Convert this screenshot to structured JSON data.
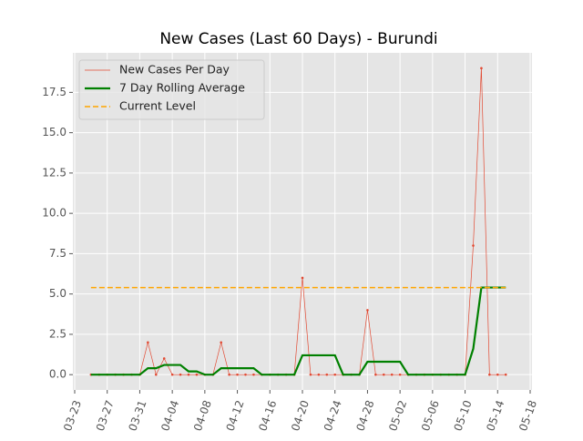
{
  "chart_data": {
    "type": "line",
    "title": "New Cases (Last 60 Days) - Burundi",
    "x": [
      "03-25",
      "03-26",
      "03-27",
      "03-28",
      "03-29",
      "03-30",
      "03-31",
      "04-01",
      "04-02",
      "04-03",
      "04-04",
      "04-05",
      "04-06",
      "04-07",
      "04-08",
      "04-09",
      "04-10",
      "04-11",
      "04-12",
      "04-13",
      "04-14",
      "04-15",
      "04-16",
      "04-17",
      "04-18",
      "04-19",
      "04-20",
      "04-21",
      "04-22",
      "04-23",
      "04-24",
      "04-25",
      "04-26",
      "04-27",
      "04-28",
      "04-29",
      "04-30",
      "05-01",
      "05-02",
      "05-03",
      "05-04",
      "05-05",
      "05-06",
      "05-07",
      "05-08",
      "05-09",
      "05-10",
      "05-11",
      "05-12",
      "05-13",
      "05-14",
      "05-15"
    ],
    "series": [
      {
        "name": "New Cases Per Day",
        "color": "#e24a33",
        "values": [
          0,
          0,
          0,
          0,
          0,
          0,
          0,
          2,
          0,
          1,
          0,
          0,
          0,
          0,
          0,
          0,
          2,
          0,
          0,
          0,
          0,
          0,
          0,
          0,
          0,
          0,
          6,
          0,
          0,
          0,
          0,
          0,
          0,
          0,
          4,
          0,
          0,
          0,
          0,
          0,
          0,
          0,
          0,
          0,
          0,
          0,
          0,
          8,
          19,
          0,
          0,
          0
        ]
      },
      {
        "name": "7 Day Rolling Average",
        "color": "#008000",
        "values": [
          0,
          0,
          0,
          0,
          0,
          0,
          0,
          0.4,
          0.4,
          0.6,
          0.6,
          0.6,
          0.2,
          0.2,
          0,
          0,
          0.4,
          0.4,
          0.4,
          0.4,
          0.4,
          0,
          0,
          0,
          0,
          0,
          1.2,
          1.2,
          1.2,
          1.2,
          1.2,
          0,
          0,
          0,
          0.8,
          0.8,
          0.8,
          0.8,
          0.8,
          0,
          0,
          0,
          0,
          0,
          0,
          0,
          0,
          1.6,
          5.4,
          5.4,
          5.4,
          5.4
        ]
      },
      {
        "name": "Current Level",
        "color": "#ffa500",
        "values": [
          5.4,
          5.4,
          5.4,
          5.4,
          5.4,
          5.4,
          5.4,
          5.4,
          5.4,
          5.4,
          5.4,
          5.4,
          5.4,
          5.4,
          5.4,
          5.4,
          5.4,
          5.4,
          5.4,
          5.4,
          5.4,
          5.4,
          5.4,
          5.4,
          5.4,
          5.4,
          5.4,
          5.4,
          5.4,
          5.4,
          5.4,
          5.4,
          5.4,
          5.4,
          5.4,
          5.4,
          5.4,
          5.4,
          5.4,
          5.4,
          5.4,
          5.4,
          5.4,
          5.4,
          5.4,
          5.4,
          5.4,
          5.4,
          5.4,
          5.4,
          5.4,
          5.4
        ]
      }
    ],
    "xlim": [
      "03-23",
      "05-18"
    ],
    "xticks": [
      "03-23",
      "03-27",
      "03-31",
      "04-04",
      "04-08",
      "04-12",
      "04-16",
      "04-20",
      "04-24",
      "04-28",
      "05-02",
      "05-06",
      "05-10",
      "05-14",
      "05-18"
    ],
    "ylim": [
      -0.95,
      19.95
    ],
    "yticks": [
      {
        "value": 0,
        "label": "0.0"
      },
      2.5,
      {
        "value": 5,
        "label": "5.0"
      },
      7.5,
      {
        "value": 10,
        "label": "10.0"
      },
      12.5,
      {
        "value": 15,
        "label": "15.0"
      },
      17.5
    ],
    "grid": true,
    "legend": "upper left"
  }
}
